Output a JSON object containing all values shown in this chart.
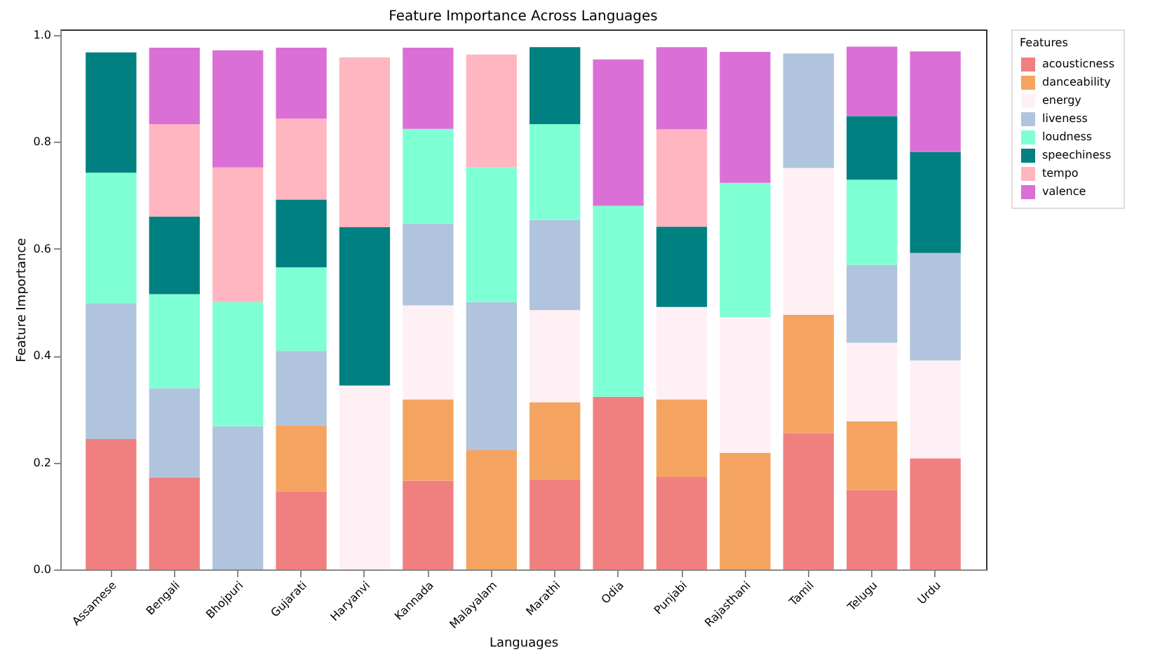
{
  "chart_data": {
    "type": "bar",
    "stacked": true,
    "title": "Feature Importance Across Languages",
    "xlabel": "Languages",
    "ylabel": "Feature Importance",
    "legend_title": "Features",
    "legend": "right",
    "categories": [
      "Assamese",
      "Bengali",
      "Bhojpuri",
      "Gujarati",
      "Haryanvi",
      "Kannada",
      "Malayalam",
      "Marathi",
      "Odia",
      "Punjabi",
      "Rajasthani",
      "Tamil",
      "Telugu",
      "Urdu"
    ],
    "ylim": [
      0,
      1.01
    ],
    "yticks": [
      {
        "value": 0,
        "label": "0.0"
      },
      {
        "value": 0.2,
        "label": "0.2"
      },
      {
        "value": 0.4,
        "label": "0.4"
      },
      {
        "value": 0.6,
        "label": "0.6"
      },
      {
        "value": 0.8,
        "label": "0.8"
      },
      {
        "value": 1,
        "label": "1.0"
      }
    ],
    "grid": false,
    "series": [
      {
        "name": "acousticness",
        "color": "#f08080",
        "values": [
          0.244,
          0.172,
          null,
          0.146,
          null,
          0.166,
          null,
          0.169,
          0.323,
          0.173,
          null,
          0.255,
          0.149,
          0.208
        ]
      },
      {
        "name": "danceability",
        "color": "#f4a460",
        "values": [
          null,
          null,
          null,
          0.124,
          null,
          0.152,
          0.223,
          0.144,
          null,
          0.145,
          0.218,
          0.221,
          0.128,
          null
        ]
      },
      {
        "name": "energy",
        "color": "#fff0f5",
        "values": [
          null,
          null,
          null,
          null,
          0.344,
          0.176,
          null,
          0.172,
          null,
          0.173,
          0.254,
          0.275,
          0.147,
          0.183
        ]
      },
      {
        "name": "liveness",
        "color": "#b0c4de",
        "values": [
          0.254,
          0.167,
          0.268,
          0.139,
          null,
          0.153,
          0.277,
          0.169,
          null,
          null,
          null,
          0.214,
          0.146,
          0.201
        ]
      },
      {
        "name": "loudness",
        "color": "#7fffd4",
        "values": [
          0.244,
          0.176,
          0.232,
          0.156,
          null,
          0.177,
          0.252,
          0.179,
          0.357,
          null,
          0.251,
          null,
          0.159,
          null
        ]
      },
      {
        "name": "speechiness",
        "color": "#008080",
        "values": [
          0.225,
          0.145,
          null,
          0.127,
          0.296,
          null,
          null,
          0.144,
          null,
          0.15,
          null,
          null,
          0.119,
          0.189
        ]
      },
      {
        "name": "tempo",
        "color": "#ffb6c1",
        "values": [
          null,
          0.173,
          0.252,
          0.151,
          0.318,
          null,
          0.211,
          null,
          null,
          0.182,
          null,
          null,
          null,
          null
        ]
      },
      {
        "name": "valence",
        "color": "#da70d6",
        "values": [
          null,
          0.143,
          0.219,
          0.133,
          null,
          0.152,
          null,
          null,
          0.274,
          0.154,
          0.245,
          null,
          0.13,
          0.188
        ]
      }
    ]
  }
}
